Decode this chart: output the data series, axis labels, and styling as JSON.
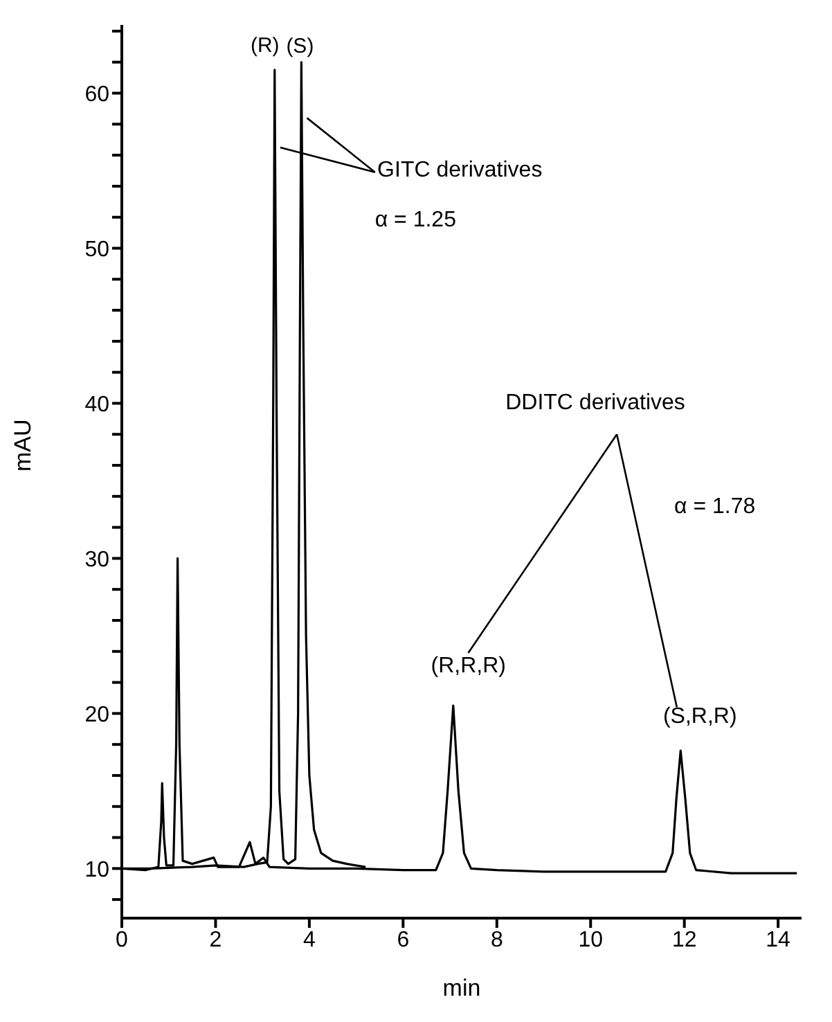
{
  "chart_data": {
    "type": "line",
    "xlabel": "min",
    "ylabel": "mAU",
    "xlim": [
      0,
      14.5
    ],
    "xticks": [
      0,
      2,
      4,
      6,
      8,
      10,
      12,
      14
    ],
    "ylim": [
      6.8,
      64.4
    ],
    "yticks": [
      {
        "value": 8,
        "label": null
      },
      10,
      {
        "value": 12,
        "label": null
      },
      {
        "value": 14,
        "label": null
      },
      {
        "value": 16,
        "label": null
      },
      {
        "value": 18,
        "label": null
      },
      20,
      {
        "value": 22,
        "label": null
      },
      {
        "value": 24,
        "label": null
      },
      {
        "value": 26,
        "label": null
      },
      {
        "value": 28,
        "label": null
      },
      30,
      {
        "value": 32,
        "label": null
      },
      {
        "value": 34,
        "label": null
      },
      {
        "value": 36,
        "label": null
      },
      {
        "value": 38,
        "label": null
      },
      40,
      {
        "value": 42,
        "label": null
      },
      {
        "value": 44,
        "label": null
      },
      {
        "value": 46,
        "label": null
      },
      {
        "value": 48,
        "label": null
      },
      50,
      {
        "value": 52,
        "label": null
      },
      {
        "value": 54,
        "label": null
      },
      {
        "value": 56,
        "label": null
      },
      {
        "value": 58,
        "label": null
      },
      60,
      {
        "value": 62,
        "label": null
      },
      {
        "value": 64,
        "label": null
      }
    ],
    "grid": false,
    "marker": "none",
    "line_style": "solid",
    "series": [
      {
        "color": "#000000",
        "x": [
          0,
          0.6,
          1.5,
          2.0,
          2.6,
          2.9,
          3.1,
          3.18,
          3.23,
          3.26,
          3.3,
          3.36,
          3.45,
          3.55,
          3.7,
          3.76,
          3.8,
          3.83,
          3.87,
          3.93,
          4.0,
          4.1,
          4.25,
          4.5,
          4.8,
          5.2
        ],
        "values": [
          10,
          10,
          10.1,
          10.2,
          10.1,
          10.3,
          10.4,
          14,
          40,
          61.5,
          40,
          15,
          10.6,
          10.3,
          10.6,
          20,
          45,
          62,
          45,
          25,
          16,
          12.5,
          11,
          10.5,
          10.3,
          10.1
        ]
      },
      {
        "color": "#000000",
        "x": [
          0,
          0.5,
          0.78,
          0.84,
          0.86,
          0.9,
          0.95,
          1.1,
          1.16,
          1.19,
          1.23,
          1.3,
          1.5,
          1.96,
          2.05,
          2.5,
          2.73,
          2.85,
          3.02,
          3.15,
          4,
          5,
          6,
          6.7,
          6.85,
          6.95,
          7.07,
          7.18,
          7.3,
          7.45,
          8,
          9,
          10,
          11,
          11.6,
          11.75,
          11.83,
          11.92,
          12.02,
          12.12,
          12.25,
          13,
          14,
          14.4
        ],
        "values": [
          10,
          9.9,
          10.1,
          13,
          15.5,
          12,
          10.2,
          10.2,
          18,
          30,
          18,
          10.5,
          10.3,
          10.7,
          10.1,
          10.1,
          11.7,
          10.3,
          10.7,
          10.1,
          10,
          10,
          9.9,
          9.9,
          11,
          15,
          20.5,
          15,
          11,
          10,
          9.9,
          9.8,
          9.8,
          9.8,
          9.8,
          11,
          14.5,
          17.6,
          14.5,
          11,
          9.9,
          9.7,
          9.7,
          9.7
        ]
      }
    ],
    "annotations": [
      {
        "text": "(R)",
        "x": 3.26,
        "y": 61.5
      },
      {
        "text": "(S)",
        "x": 3.83,
        "y": 62
      },
      {
        "text": "GITC derivatives",
        "x": 3.95,
        "y": 58.4
      },
      "α = 1.25",
      "DDITC derivatives",
      "α = 1.78",
      {
        "text": "(R,R,R)",
        "x": 7.07,
        "y": 20.5
      },
      {
        "text": "(S,R,R)",
        "x": 11.92,
        "y": 17.6
      }
    ]
  }
}
